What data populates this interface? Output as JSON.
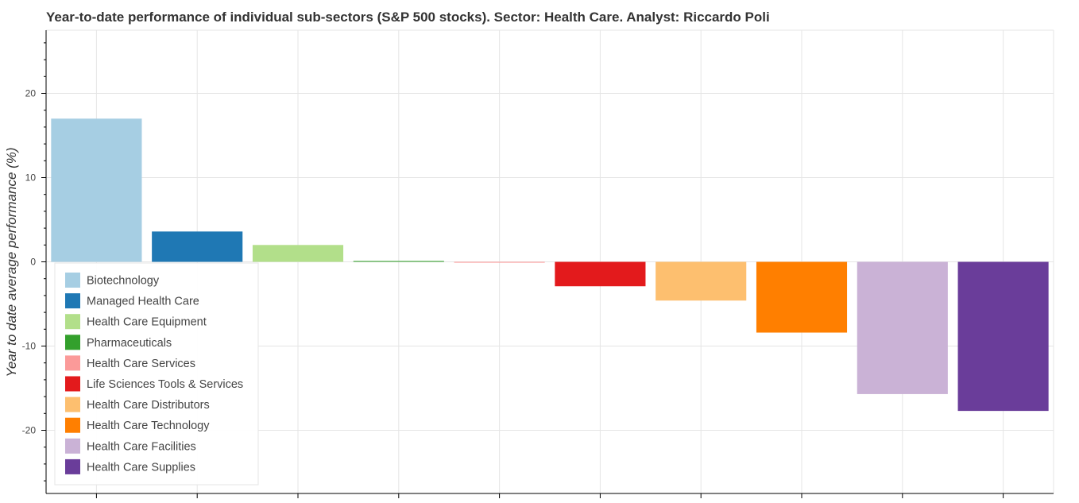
{
  "chart_data": {
    "type": "bar",
    "title": "Year-to-date performance of individual sub-sectors (S&P 500 stocks). Sector: Health Care. Analyst: Riccardo Poli",
    "xlabel": "",
    "ylabel": "Year to date average performance (%)",
    "ylim": [
      -27.5,
      27.5
    ],
    "yticks": [
      -20,
      -10,
      0,
      10,
      20
    ],
    "ytick_labels": [
      "-20",
      "-10",
      "0",
      "10",
      "20"
    ],
    "grid": true,
    "legend_position": "bottom-left",
    "categories": [
      "Biotechnology",
      "Managed Health Care",
      "Health Care Equipment",
      "Pharmaceuticals",
      "Health Care Services",
      "Life Sciences Tools & Services",
      "Health Care Distributors",
      "Health Care Technology",
      "Health Care Facilities",
      "Health Care Supplies"
    ],
    "values": [
      17.0,
      3.6,
      2.0,
      0.1,
      -0.1,
      -2.9,
      -4.6,
      -8.4,
      -15.7,
      -17.7
    ],
    "colors": [
      "#a6cee3",
      "#1f78b4",
      "#b2df8a",
      "#33a02c",
      "#fb9a99",
      "#e31a1c",
      "#fdbf6f",
      "#ff7f00",
      "#cab2d6",
      "#6a3d9a"
    ]
  }
}
